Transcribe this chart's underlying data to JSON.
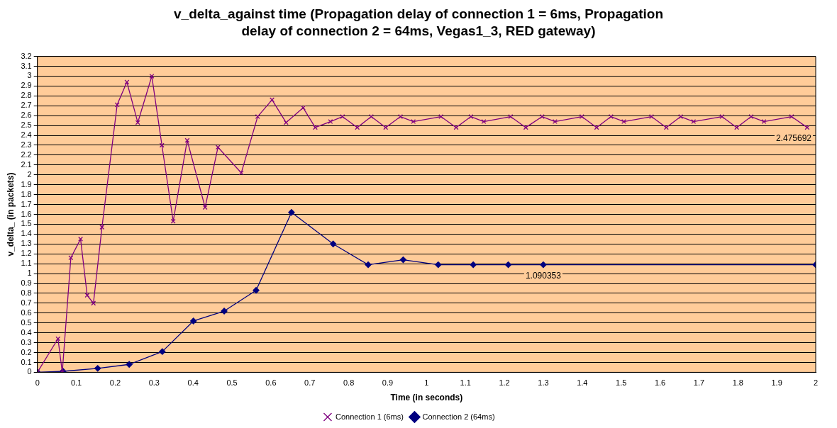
{
  "chart_data": {
    "type": "line",
    "title": "v_delta_against time (Propagation delay of connection 1 = 6ms, Propagation delay of connection 2 = 64ms, Vegas1_3, RED gateway)",
    "xlabel": "Time (in seconds)",
    "ylabel": "v_delta_ (in packets)",
    "series": [
      {
        "name": "Connection 1 (6ms)",
        "color": "#800080",
        "marker": "cross",
        "x": [
          0,
          0.053,
          0.064,
          0.086,
          0.111,
          0.128,
          0.144,
          0.166,
          0.205,
          0.23,
          0.258,
          0.294,
          0.32,
          0.349,
          0.385,
          0.431,
          0.464,
          0.524,
          0.566,
          0.603,
          0.639,
          0.683,
          0.714,
          0.753,
          0.784,
          0.822,
          0.858,
          0.895,
          0.933,
          0.966,
          1.037,
          1.076,
          1.114,
          1.147,
          1.216,
          1.255,
          1.297,
          1.33,
          1.399,
          1.437,
          1.474,
          1.507,
          1.578,
          1.616,
          1.653,
          1.686,
          1.759,
          1.797,
          1.834,
          1.867,
          1.938,
          1.978
        ],
        "values": [
          0,
          0.34,
          0,
          1.16,
          1.35,
          0.78,
          0.7,
          1.47,
          2.71,
          2.94,
          2.53,
          3.0,
          2.3,
          1.53,
          2.35,
          1.67,
          2.28,
          2.02,
          2.59,
          2.76,
          2.53,
          2.68,
          2.48,
          2.54,
          2.59,
          2.48,
          2.59,
          2.48,
          2.59,
          2.54,
          2.59,
          2.48,
          2.59,
          2.54,
          2.59,
          2.48,
          2.59,
          2.54,
          2.59,
          2.48,
          2.59,
          2.54,
          2.59,
          2.48,
          2.59,
          2.54,
          2.59,
          2.48,
          2.59,
          2.54,
          2.59,
          2.48
        ]
      },
      {
        "name": "Connection 2 (64ms)",
        "color": "#000080",
        "marker": "diamond",
        "x": [
          0,
          0.066,
          0.155,
          0.236,
          0.321,
          0.401,
          0.48,
          0.562,
          0.653,
          0.76,
          0.85,
          0.94,
          1.03,
          1.12,
          1.21,
          1.3,
          2.0
        ],
        "values": [
          0,
          0.01,
          0.04,
          0.08,
          0.21,
          0.52,
          0.62,
          0.83,
          1.62,
          1.3,
          1.09,
          1.14,
          1.09,
          1.09,
          1.09,
          1.09,
          1.09
        ]
      }
    ],
    "annotations": [
      {
        "text": "2.475692",
        "x": 1.978,
        "y": 2.48
      },
      {
        "text": "1.090353",
        "x": 1.3,
        "y": 1.09
      }
    ],
    "xlim": [
      0,
      2
    ],
    "xticks": [
      0,
      0.1,
      0.2,
      0.3,
      0.4,
      0.5,
      0.6,
      0.7,
      0.8,
      0.9,
      1,
      1.1,
      1.2,
      1.3,
      1.4,
      1.5,
      1.6,
      1.7,
      1.8,
      1.9,
      2
    ],
    "ylim": [
      0,
      3.2
    ],
    "yticks": [
      0,
      0.1,
      0.2,
      0.3,
      0.4,
      0.5,
      0.6,
      0.7,
      0.8,
      0.9,
      1,
      1.1,
      1.2,
      1.3,
      1.4,
      1.5,
      1.6,
      1.7,
      1.8,
      1.9,
      2,
      2.1,
      2.2,
      2.3,
      2.4,
      2.5,
      2.6,
      2.7,
      2.8,
      2.9,
      3,
      3.1,
      3.2
    ],
    "grid": "y",
    "legend": "bottom",
    "line_style": "solid"
  }
}
